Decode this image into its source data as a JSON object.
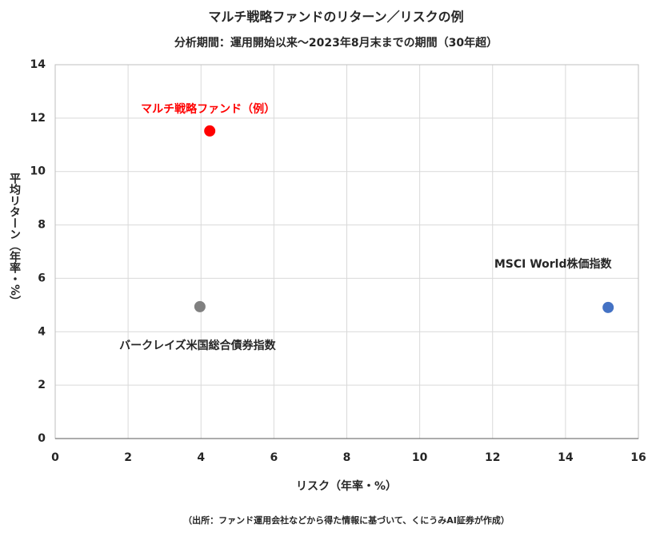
{
  "chart_data": {
    "type": "scatter",
    "title": "マルチ戦略ファンドのリターン／リスクの例",
    "subtitle": "分析期間：運用開始以来～2023年8月末までの期間（30年超）",
    "x_label": "リスク（年率・%）",
    "y_label": "平均リターン（年率・%）",
    "source": "（出所：ファンド運用会社などから得た情報に基づいて、くにうみAI証券が作成）",
    "xlim": [
      0,
      16
    ],
    "xticks": [
      0,
      2,
      4,
      6,
      8,
      10,
      12,
      14,
      16
    ],
    "ylim": [
      0,
      14
    ],
    "yticks": [
      0,
      2,
      4,
      6,
      8,
      10,
      12,
      14
    ],
    "grid": true,
    "series": [
      {
        "name": "マルチ戦略ファンド（例）",
        "color": "#ff0000",
        "x": [
          4.24
        ],
        "values": [
          11.52
        ]
      },
      {
        "name": "バークレイズ米国総合債券指数",
        "color": "#808080",
        "x": [
          3.97
        ],
        "values": [
          4.94
        ]
      },
      {
        "name": "MSCI World株価指数",
        "color": "#4472c4",
        "x": [
          15.17
        ],
        "values": [
          4.91
        ]
      }
    ]
  }
}
